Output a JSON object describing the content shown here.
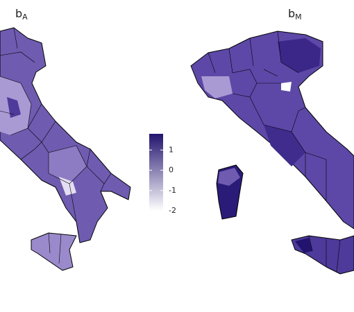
{
  "panels": [
    {
      "title": "b",
      "subscript": "A"
    },
    {
      "title": "b",
      "subscript": "M"
    }
  ],
  "legend": {
    "ticks": [
      1,
      0,
      -1,
      -2
    ],
    "range": [
      -2,
      1.8
    ],
    "colors": [
      "#ffffff",
      "#22146e"
    ]
  }
}
